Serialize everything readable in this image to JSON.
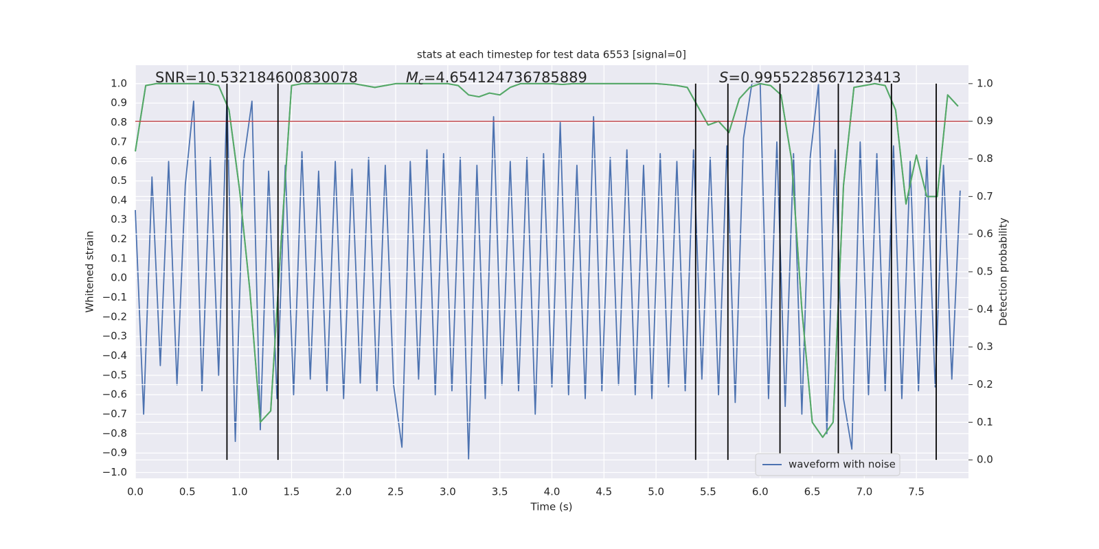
{
  "chart_data": {
    "type": "line",
    "title": "stats at each timestep for test data 6553 [signal=0]",
    "xlabel": "Time (s)",
    "ylabel": "Whitened strain",
    "y2label": "Detection probability",
    "annotations": [
      {
        "text": "SNR=10.532184600830078"
      },
      {
        "symbol": "M",
        "subscript": "c",
        "text": "=4.654124736785889"
      },
      {
        "symbol": "S",
        "text": "=0.9955228567123413"
      }
    ],
    "xlim": [
      0,
      8.0
    ],
    "ylim": [
      -1.03,
      1.095
    ],
    "y2lim": [
      -0.049,
      1.049
    ],
    "xticks": [
      {
        "value": 0,
        "label": "0.0"
      },
      0.5,
      {
        "value": 1,
        "label": "1.0"
      },
      1.5,
      {
        "value": 2,
        "label": "2.0"
      },
      2.5,
      {
        "value": 3,
        "label": "3.0"
      },
      3.5,
      {
        "value": 4,
        "label": "4.0"
      },
      4.5,
      {
        "value": 5,
        "label": "5.0"
      },
      5.5,
      {
        "value": 6,
        "label": "6.0"
      },
      6.5,
      {
        "value": 7,
        "label": "7.0"
      },
      7.5
    ],
    "yticks": [
      {
        "value": -1,
        "label": "−1.0"
      },
      {
        "value": -0.9,
        "label": "−0.9"
      },
      {
        "value": -0.8,
        "label": "−0.8"
      },
      {
        "value": -0.7,
        "label": "−0.7"
      },
      {
        "value": -0.6,
        "label": "−0.6"
      },
      {
        "value": -0.5,
        "label": "−0.5"
      },
      {
        "value": -0.4,
        "label": "−0.4"
      },
      {
        "value": -0.3,
        "label": "−0.3"
      },
      {
        "value": -0.2,
        "label": "−0.2"
      },
      {
        "value": -0.1,
        "label": "−0.1"
      },
      {
        "value": 0,
        "label": "0.0"
      },
      0.1,
      0.2,
      0.3,
      0.4,
      0.5,
      0.6,
      0.7,
      0.8,
      0.9,
      {
        "value": 1,
        "label": "1.0"
      }
    ],
    "y2ticks": [
      {
        "value": 0,
        "label": "0.0"
      },
      0.1,
      0.2,
      0.3,
      0.4,
      0.5,
      0.6,
      0.7,
      0.8,
      0.9,
      {
        "value": 1,
        "label": "1.0"
      }
    ],
    "grid": true,
    "legend": "lower right",
    "series": [
      {
        "name": "waveform with noise",
        "color": "#4c72b0",
        "x": [
          0,
          0.08,
          0.16,
          0.24,
          0.32,
          0.4,
          0.48,
          0.56,
          0.64,
          0.72,
          0.8,
          0.88,
          0.96,
          1.04,
          1.12,
          1.2,
          1.28,
          1.36,
          1.44,
          1.52,
          1.6,
          1.68,
          1.76,
          1.84,
          1.92,
          2.0,
          2.08,
          2.16,
          2.24,
          2.32,
          2.4,
          2.48,
          2.56,
          2.64,
          2.72,
          2.8,
          2.88,
          2.96,
          3.04,
          3.12,
          3.2,
          3.28,
          3.36,
          3.44,
          3.52,
          3.6,
          3.68,
          3.76,
          3.84,
          3.92,
          4.0,
          4.08,
          4.16,
          4.24,
          4.32,
          4.4,
          4.48,
          4.56,
          4.64,
          4.72,
          4.8,
          4.88,
          4.96,
          5.04,
          5.12,
          5.2,
          5.28,
          5.36,
          5.44,
          5.52,
          5.6,
          5.68,
          5.76,
          5.84,
          5.92,
          6.0,
          6.08,
          6.16,
          6.24,
          6.32,
          6.4,
          6.48,
          6.56,
          6.64,
          6.72,
          6.8,
          6.88,
          6.96,
          7.04,
          7.12,
          7.2,
          7.28,
          7.36,
          7.44,
          7.52,
          7.6,
          7.68,
          7.76,
          7.84,
          7.92
        ],
        "values": [
          0.35,
          -0.7,
          0.52,
          -0.45,
          0.6,
          -0.55,
          0.48,
          0.91,
          -0.58,
          0.62,
          -0.5,
          0.93,
          -0.84,
          0.6,
          0.91,
          -0.78,
          0.55,
          -0.62,
          0.58,
          -0.6,
          0.65,
          -0.52,
          0.55,
          -0.58,
          0.6,
          -0.62,
          0.56,
          -0.54,
          0.62,
          -0.58,
          0.58,
          -0.55,
          -0.87,
          0.6,
          -0.52,
          0.66,
          -0.6,
          0.64,
          -0.58,
          0.62,
          -0.93,
          0.58,
          -0.62,
          0.83,
          -0.55,
          0.6,
          -0.58,
          0.62,
          -0.7,
          0.64,
          -0.56,
          0.8,
          -0.6,
          0.58,
          -0.62,
          0.83,
          -0.58,
          0.62,
          -0.55,
          0.66,
          -0.6,
          0.58,
          -0.62,
          0.64,
          -0.56,
          0.6,
          -0.58,
          0.66,
          -0.52,
          0.62,
          -0.6,
          0.68,
          -0.64,
          0.72,
          1.0,
          1.0,
          -0.62,
          0.7,
          -0.66,
          0.64,
          -0.7,
          0.62,
          1.0,
          -0.8,
          0.66,
          -0.62,
          -0.88,
          0.7,
          -0.6,
          0.64,
          -0.58,
          0.68,
          -0.62,
          0.6,
          -0.58,
          0.62,
          -0.56,
          0.58,
          -0.52,
          0.45
        ]
      },
      {
        "axis": "y2",
        "color": "#55a868",
        "x": [
          0,
          0.1,
          0.2,
          0.3,
          0.4,
          0.5,
          0.6,
          0.7,
          0.8,
          0.9,
          1.0,
          1.1,
          1.2,
          1.3,
          1.4,
          1.5,
          1.6,
          1.7,
          1.8,
          1.9,
          2.0,
          2.1,
          2.2,
          2.3,
          2.4,
          2.5,
          2.6,
          2.7,
          2.8,
          2.9,
          3.0,
          3.1,
          3.2,
          3.3,
          3.4,
          3.5,
          3.6,
          3.7,
          3.8,
          3.9,
          4.0,
          4.1,
          4.2,
          4.3,
          4.4,
          4.5,
          4.6,
          4.7,
          4.8,
          4.9,
          5.0,
          5.1,
          5.2,
          5.3,
          5.4,
          5.5,
          5.6,
          5.7,
          5.8,
          5.9,
          6.0,
          6.1,
          6.2,
          6.3,
          6.4,
          6.5,
          6.6,
          6.7,
          6.8,
          6.9,
          7.0,
          7.1,
          7.2,
          7.3,
          7.4,
          7.5,
          7.6,
          7.7,
          7.8,
          7.9
        ],
        "values": [
          0.82,
          0.995,
          1.0,
          1.0,
          1.0,
          1.0,
          1.0,
          1.0,
          0.995,
          0.93,
          0.72,
          0.45,
          0.1,
          0.13,
          0.58,
          0.995,
          1.0,
          1.0,
          1.0,
          1.0,
          1.0,
          1.0,
          0.995,
          0.99,
          0.995,
          1.0,
          1.0,
          1.0,
          1.0,
          1.0,
          1.0,
          0.995,
          0.97,
          0.965,
          0.975,
          0.97,
          0.99,
          1.0,
          1.0,
          1.0,
          1.0,
          0.998,
          1.0,
          1.0,
          1.0,
          1.0,
          1.0,
          1.0,
          1.0,
          1.0,
          1.0,
          0.998,
          0.995,
          0.99,
          0.94,
          0.89,
          0.9,
          0.87,
          0.96,
          0.99,
          1.0,
          0.995,
          0.97,
          0.8,
          0.4,
          0.1,
          0.06,
          0.1,
          0.73,
          0.99,
          0.995,
          1.0,
          0.995,
          0.93,
          0.68,
          0.81,
          0.7,
          0.7,
          0.97,
          0.94
        ]
      }
    ],
    "hline": {
      "value": 0.9,
      "axis": "y2",
      "color": "#c44e52"
    },
    "vlines": {
      "x": [
        0.88,
        1.37,
        5.38,
        5.69,
        6.19,
        6.75,
        7.26,
        7.69
      ],
      "ymin": 0,
      "ymax": 1,
      "axis": "y2",
      "color": "#000000"
    }
  }
}
